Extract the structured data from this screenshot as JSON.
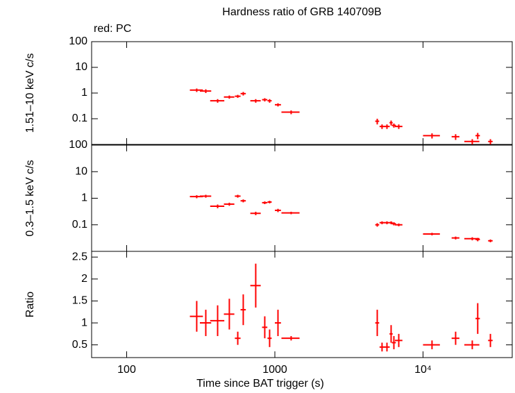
{
  "chart_data": [
    {
      "type": "scatter",
      "title": "Hardness ratio of GRB 140709B",
      "annotation": "red: PC",
      "ylabel": "1.51–10 keV c/s",
      "xlog": true,
      "ylog": true,
      "color": "#ff0000",
      "xlim": [
        58,
        40000
      ],
      "xticks": [
        100,
        1000,
        {
          "value": 10000,
          "label": "10⁴"
        }
      ],
      "ylim": [
        0.01,
        100
      ],
      "yticks": [
        0.1,
        1,
        10,
        100
      ],
      "x": [
        297,
        342,
        411,
        493,
        562,
        612,
        743,
        855,
        922,
        1050,
        1288,
        4910,
        5290,
        5710,
        6090,
        6360,
        6860,
        11500,
        16600,
        21500,
        23400,
        28500
      ],
      "x_err": [
        30,
        30,
        45,
        40,
        25,
        25,
        60,
        35,
        30,
        50,
        180,
        150,
        200,
        250,
        150,
        200,
        400,
        1500,
        1000,
        2500,
        800,
        1000
      ],
      "values": [
        1.3,
        1.2,
        0.5,
        0.7,
        0.75,
        0.95,
        0.5,
        0.55,
        0.5,
        0.35,
        0.18,
        0.08,
        0.05,
        0.05,
        0.07,
        0.055,
        0.05,
        0.022,
        0.02,
        0.013,
        0.022,
        0.013
      ],
      "errors": [
        0.2,
        0.2,
        0.08,
        0.1,
        0.1,
        0.15,
        0.08,
        0.08,
        0.08,
        0.05,
        0.03,
        0.02,
        0.01,
        0.01,
        0.015,
        0.01,
        0.01,
        0.005,
        0.005,
        0.003,
        0.006,
        0.003
      ]
    },
    {
      "type": "scatter",
      "ylabel": "0.3–1.5 keV c/s",
      "xlog": true,
      "ylog": true,
      "color": "#ff0000",
      "xlim": [
        58,
        40000
      ],
      "xticks": [
        100,
        1000,
        10000
      ],
      "ylim": [
        0.01,
        100
      ],
      "yticks": [
        0.1,
        1,
        10,
        100
      ],
      "x": [
        297,
        342,
        411,
        493,
        562,
        612,
        743,
        855,
        922,
        1050,
        1288,
        4910,
        5290,
        5710,
        6090,
        6360,
        6860,
        11500,
        16600,
        21500,
        23400,
        28500
      ],
      "x_err": [
        30,
        30,
        45,
        40,
        25,
        25,
        60,
        35,
        30,
        50,
        180,
        150,
        200,
        250,
        150,
        200,
        400,
        1500,
        1000,
        2500,
        800,
        1000
      ],
      "values": [
        1.15,
        1.2,
        0.5,
        0.6,
        1.2,
        0.8,
        0.27,
        0.68,
        0.72,
        0.35,
        0.28,
        0.1,
        0.12,
        0.12,
        0.12,
        0.11,
        0.1,
        0.045,
        0.032,
        0.03,
        0.028,
        0.025
      ],
      "errors": [
        0.15,
        0.15,
        0.08,
        0.08,
        0.15,
        0.1,
        0.04,
        0.08,
        0.08,
        0.05,
        0.03,
        0.015,
        0.015,
        0.015,
        0.015,
        0.015,
        0.012,
        0.005,
        0.004,
        0.004,
        0.004,
        0.003
      ]
    },
    {
      "type": "scatter",
      "ylabel": "Ratio",
      "xlabel": "Time since BAT trigger (s)",
      "xlog": true,
      "ylog": false,
      "color": "#ff0000",
      "xlim": [
        58,
        40000
      ],
      "xticks": [
        100,
        1000,
        {
          "value": 10000,
          "label": "10⁴"
        }
      ],
      "ylim": [
        0.21,
        2.63
      ],
      "yticks": [
        0.5,
        1,
        1.5,
        2,
        2.5
      ],
      "x": [
        297,
        342,
        411,
        493,
        562,
        612,
        743,
        855,
        922,
        1050,
        1288,
        4910,
        5290,
        5710,
        6090,
        6360,
        6860,
        11500,
        16600,
        21500,
        23400,
        28500
      ],
      "x_err": [
        30,
        30,
        45,
        40,
        25,
        25,
        60,
        35,
        30,
        50,
        180,
        150,
        200,
        250,
        150,
        200,
        400,
        1500,
        1000,
        2500,
        800,
        1000
      ],
      "values": [
        1.15,
        1.0,
        1.05,
        1.2,
        0.65,
        1.3,
        1.85,
        0.9,
        0.65,
        1.0,
        0.65,
        1.0,
        0.45,
        0.45,
        0.75,
        0.55,
        0.6,
        0.5,
        0.65,
        0.5,
        1.1,
        0.6
      ],
      "errors": [
        0.35,
        0.3,
        0.35,
        0.35,
        0.15,
        0.35,
        0.5,
        0.25,
        0.2,
        0.3,
        0.05,
        0.3,
        0.1,
        0.1,
        0.2,
        0.15,
        0.15,
        0.1,
        0.15,
        0.1,
        0.35,
        0.15
      ]
    }
  ]
}
